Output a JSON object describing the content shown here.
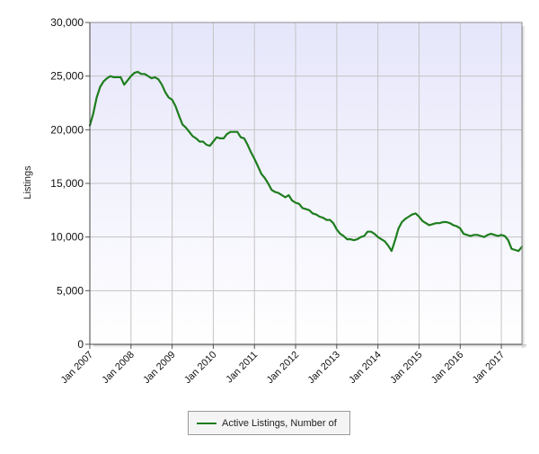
{
  "chart_data": {
    "type": "line",
    "ylabel": "Listings",
    "xlabel": "",
    "ylim": [
      0,
      30000
    ],
    "y_ticks": [
      {
        "value": 0,
        "label": "0"
      },
      {
        "value": 5000,
        "label": "5,000"
      },
      {
        "value": 10000,
        "label": "10,000"
      },
      {
        "value": 15000,
        "label": "15,000"
      },
      {
        "value": 20000,
        "label": "20,000"
      },
      {
        "value": 25000,
        "label": "25,000"
      },
      {
        "value": 30000,
        "label": "30,000"
      }
    ],
    "x_range": [
      "2007-01",
      "2017-07"
    ],
    "x_ticks": [
      {
        "value": "2007-01",
        "label": "Jan 2007"
      },
      {
        "value": "2008-01",
        "label": "Jan 2008"
      },
      {
        "value": "2009-01",
        "label": "Jan 2009"
      },
      {
        "value": "2010-01",
        "label": "Jan 2010"
      },
      {
        "value": "2011-01",
        "label": "Jan 2011"
      },
      {
        "value": "2012-01",
        "label": "Jan 2012"
      },
      {
        "value": "2013-01",
        "label": "Jan 2013"
      },
      {
        "value": "2014-01",
        "label": "Jan 2014"
      },
      {
        "value": "2015-01",
        "label": "Jan 2015"
      },
      {
        "value": "2016-01",
        "label": "Jan 2016"
      },
      {
        "value": "2017-01",
        "label": "Jan 2017"
      }
    ],
    "grid": true,
    "legend_position": "bottom-center",
    "series": [
      {
        "name": "Active Listings, Number of",
        "color": "#1e7d1e",
        "x": [
          "2007-01",
          "2007-02",
          "2007-03",
          "2007-04",
          "2007-05",
          "2007-06",
          "2007-07",
          "2007-08",
          "2007-09",
          "2007-10",
          "2007-11",
          "2007-12",
          "2008-01",
          "2008-02",
          "2008-03",
          "2008-04",
          "2008-05",
          "2008-06",
          "2008-07",
          "2008-08",
          "2008-09",
          "2008-10",
          "2008-11",
          "2008-12",
          "2009-01",
          "2009-02",
          "2009-03",
          "2009-04",
          "2009-05",
          "2009-06",
          "2009-07",
          "2009-08",
          "2009-09",
          "2009-10",
          "2009-11",
          "2009-12",
          "2010-01",
          "2010-02",
          "2010-03",
          "2010-04",
          "2010-05",
          "2010-06",
          "2010-07",
          "2010-08",
          "2010-09",
          "2010-10",
          "2010-11",
          "2010-12",
          "2011-01",
          "2011-02",
          "2011-03",
          "2011-04",
          "2011-05",
          "2011-06",
          "2011-07",
          "2011-08",
          "2011-09",
          "2011-10",
          "2011-11",
          "2011-12",
          "2012-01",
          "2012-02",
          "2012-03",
          "2012-04",
          "2012-05",
          "2012-06",
          "2012-07",
          "2012-08",
          "2012-09",
          "2012-10",
          "2012-11",
          "2012-12",
          "2013-01",
          "2013-02",
          "2013-03",
          "2013-04",
          "2013-05",
          "2013-06",
          "2013-07",
          "2013-08",
          "2013-09",
          "2013-10",
          "2013-11",
          "2013-12",
          "2014-01",
          "2014-02",
          "2014-03",
          "2014-04",
          "2014-05",
          "2014-06",
          "2014-07",
          "2014-08",
          "2014-09",
          "2014-10",
          "2014-11",
          "2014-12",
          "2015-01",
          "2015-02",
          "2015-03",
          "2015-04",
          "2015-05",
          "2015-06",
          "2015-07",
          "2015-08",
          "2015-09",
          "2015-10",
          "2015-11",
          "2015-12",
          "2016-01",
          "2016-02",
          "2016-03",
          "2016-04",
          "2016-05",
          "2016-06",
          "2016-07",
          "2016-08",
          "2016-09",
          "2016-10",
          "2016-11",
          "2016-12",
          "2017-01",
          "2017-02",
          "2017-03",
          "2017-04",
          "2017-05",
          "2017-06",
          "2017-07"
        ],
        "values": [
          20400,
          21500,
          23000,
          24000,
          24500,
          24800,
          25000,
          24900,
          24900,
          24900,
          24200,
          24600,
          25000,
          25300,
          25400,
          25200,
          25200,
          25000,
          24800,
          24900,
          24700,
          24200,
          23500,
          23000,
          22800,
          22200,
          21300,
          20500,
          20200,
          19800,
          19400,
          19200,
          18900,
          18900,
          18600,
          18500,
          18900,
          19300,
          19200,
          19200,
          19600,
          19800,
          19800,
          19800,
          19300,
          19200,
          18600,
          17900,
          17300,
          16600,
          15900,
          15500,
          15000,
          14400,
          14200,
          14100,
          13900,
          13700,
          13900,
          13400,
          13200,
          13100,
          12700,
          12600,
          12500,
          12200,
          12100,
          11900,
          11800,
          11600,
          11600,
          11300,
          10700,
          10300,
          10100,
          9800,
          9800,
          9700,
          9800,
          10000,
          10100,
          10500,
          10500,
          10300,
          10000,
          9800,
          9600,
          9200,
          8700,
          9700,
          10800,
          11400,
          11700,
          11900,
          12100,
          12200,
          11900,
          11500,
          11300,
          11100,
          11200,
          11300,
          11300,
          11400,
          11400,
          11300,
          11100,
          11000,
          10800,
          10300,
          10200,
          10100,
          10200,
          10200,
          10100,
          10000,
          10200,
          10300,
          10200,
          10100,
          10200,
          10100,
          9700,
          8900,
          8800,
          8700,
          9100
        ]
      }
    ]
  }
}
